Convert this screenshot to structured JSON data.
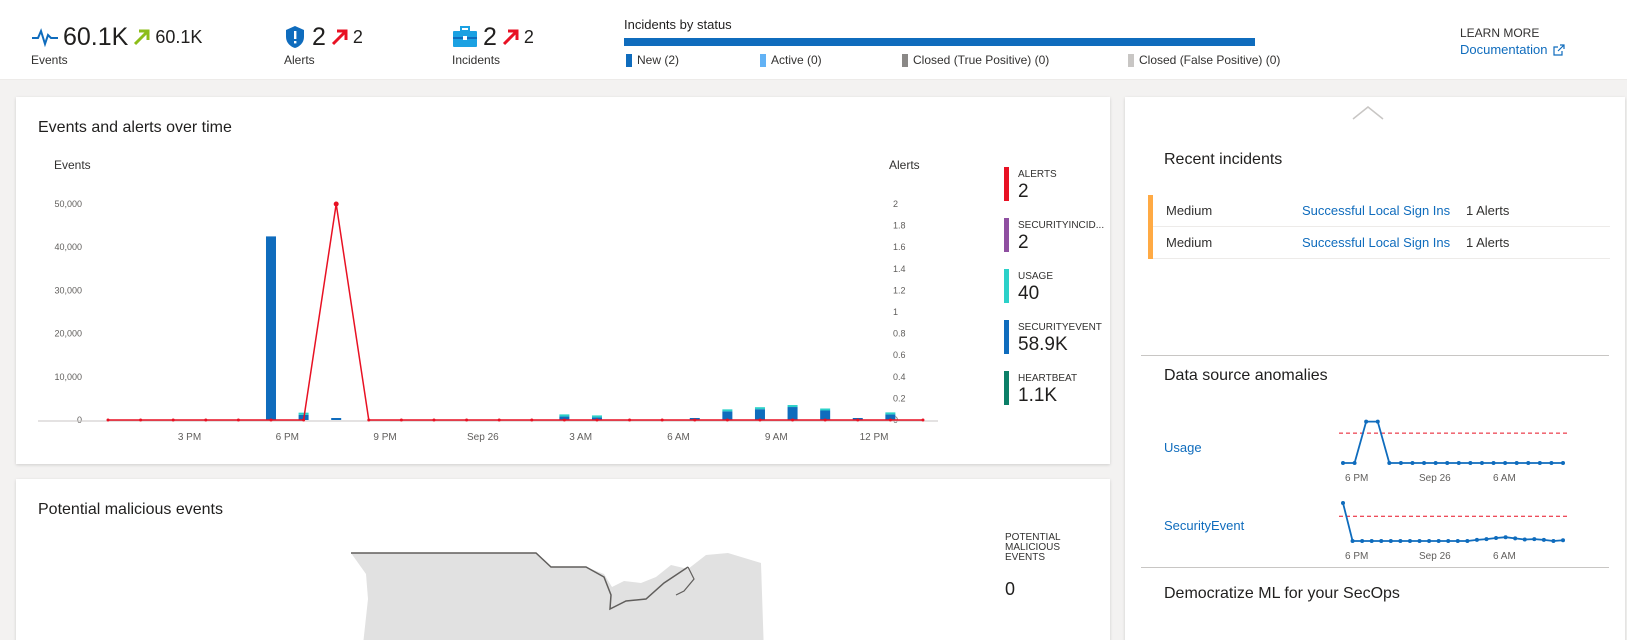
{
  "top": {
    "events": {
      "value": "60.1K",
      "change": "60.1K",
      "label": "Events"
    },
    "alerts": {
      "value": "2",
      "change": "2",
      "label": "Alerts"
    },
    "incidents": {
      "value": "2",
      "change": "2",
      "label": "Incidents"
    },
    "status": {
      "title": "Incidents by status",
      "items": [
        {
          "label": "New (2)",
          "color": "#0f6cbd"
        },
        {
          "label": "Active (0)",
          "color": "#62b2f5"
        },
        {
          "label": "Closed (True Positive) (0)",
          "color": "#8a8886"
        },
        {
          "label": "Closed (False Positive) (0)",
          "color": "#c8c6c4"
        }
      ]
    },
    "learn": {
      "title": "LEARN MORE",
      "link": "Documentation"
    }
  },
  "chart_panel": {
    "title": "Events and alerts over time",
    "kpis": [
      {
        "name": "ALERTS",
        "value": "2",
        "color": "#e81123"
      },
      {
        "name": "SECURITYINCID...",
        "value": "2",
        "color": "#8f4fa1"
      },
      {
        "name": "USAGE",
        "value": "40",
        "color": "#2bd1c9"
      },
      {
        "name": "SECURITYEVENT",
        "value": "58.9K",
        "color": "#0f6cbd"
      },
      {
        "name": "HEARTBEAT",
        "value": "1.1K",
        "color": "#0b7f67"
      }
    ]
  },
  "chart_data": {
    "type": "bar",
    "ylabel": "Events",
    "y2label": "Alerts",
    "ylim": [
      0,
      50000
    ],
    "y2lim": [
      0,
      2
    ],
    "yticks": [
      "0",
      "10,000",
      "20,000",
      "30,000",
      "40,000",
      "50,000"
    ],
    "y2ticks": [
      "0",
      "0.2",
      "0.4",
      "0.6",
      "0.8",
      "1",
      "1.2",
      "1.4",
      "1.6",
      "1.8",
      "2"
    ],
    "xticks": [
      {
        "label": "3 PM",
        "i": 2.5
      },
      {
        "label": "6 PM",
        "i": 5.5
      },
      {
        "label": "9 PM",
        "i": 8.5
      },
      {
        "label": "Sep 26",
        "i": 11.5
      },
      {
        "label": "3 AM",
        "i": 14.5
      },
      {
        "label": "6 AM",
        "i": 17.5
      },
      {
        "label": "9 AM",
        "i": 20.5
      },
      {
        "label": "12 PM",
        "i": 23.5
      }
    ],
    "series": [
      {
        "name": "SECURITYEVENT",
        "kind": "bar",
        "color": "#0f6cbd",
        "values": [
          0,
          0,
          0,
          0,
          0,
          42500,
          1200,
          300,
          0,
          0,
          0,
          0,
          0,
          0,
          800,
          600,
          0,
          0,
          200,
          2000,
          2500,
          3000,
          2200,
          400,
          1300,
          0
        ]
      },
      {
        "name": "USAGE",
        "kind": "bar",
        "color": "#2bd1c9",
        "values": [
          0,
          0,
          0,
          0,
          0,
          0,
          500,
          0,
          0,
          0,
          0,
          0,
          0,
          0,
          500,
          400,
          0,
          0,
          0,
          400,
          400,
          400,
          400,
          0,
          300,
          0
        ]
      },
      {
        "name": "ALERTS",
        "kind": "line",
        "color": "#e81123",
        "values": [
          0,
          0,
          0,
          0,
          0,
          0,
          0,
          2,
          0,
          0,
          0,
          0,
          0,
          0,
          0,
          0,
          0,
          0,
          0,
          0,
          0,
          0,
          0,
          0,
          0,
          0
        ]
      }
    ]
  },
  "map_panel": {
    "title": "Potential malicious events",
    "kpi_label": "POTENTIAL MALICIOUS EVENTS",
    "kpi_value": "0"
  },
  "right": {
    "recent_title": "Recent incidents",
    "incidents": [
      {
        "severity": "Medium",
        "name": "Successful Local Sign Ins",
        "alerts": "1 Alerts"
      },
      {
        "severity": "Medium",
        "name": "Successful Local Sign Ins",
        "alerts": "1 Alerts"
      }
    ],
    "anomalies_title": "Data source anomalies",
    "sparks": [
      {
        "label": "Usage",
        "values": [
          0,
          0,
          0.9,
          0.9,
          0,
          0,
          0,
          0,
          0,
          0,
          0,
          0,
          0,
          0,
          0,
          0,
          0,
          0,
          0,
          0
        ],
        "xticks": [
          "6 PM",
          "Sep 26",
          "6 AM"
        ]
      },
      {
        "label": "SecurityEvent",
        "values": [
          1,
          0,
          0,
          0,
          0,
          0,
          0,
          0,
          0,
          0,
          0,
          0,
          0,
          0,
          0.03,
          0.05,
          0.08,
          0.1,
          0.07,
          0.04,
          0.05,
          0.03,
          0,
          0.02
        ],
        "xticks": [
          "6 PM",
          "Sep 26",
          "6 AM"
        ]
      }
    ],
    "ml_title": "Democratize ML for your SecOps"
  }
}
